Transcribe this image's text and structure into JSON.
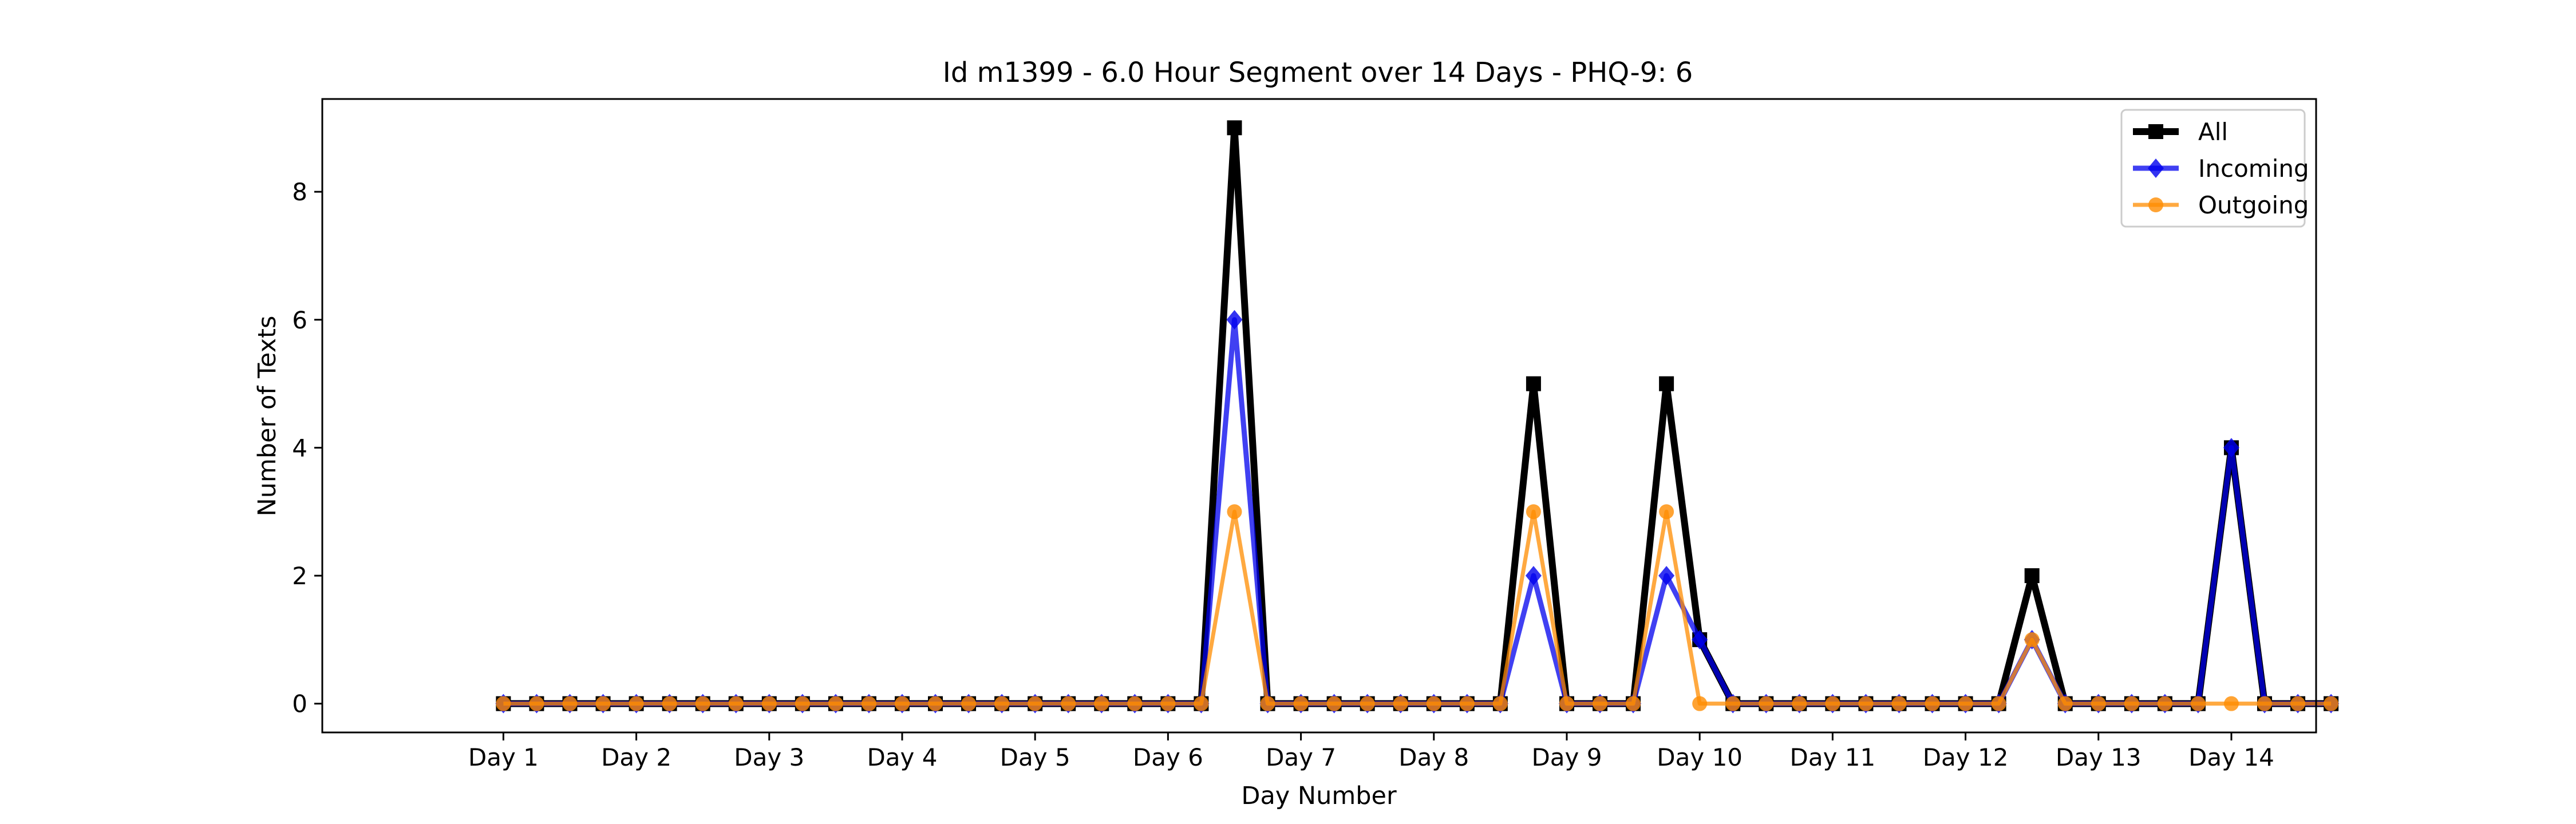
{
  "chart_data": {
    "type": "line",
    "title": "Id m1399 - 6.0 Hour Segment over 14 Days - PHQ-9: 6",
    "xlabel": "Day Number",
    "ylabel": "Number of Texts",
    "x_tick_labels": [
      "Day 1",
      "Day 2",
      "Day 3",
      "Day 4",
      "Day 5",
      "Day 6",
      "Day 7",
      "Day 8",
      "Day 9",
      "Day 10",
      "Day 11",
      "Day 12",
      "Day 13",
      "Day 14"
    ],
    "y_ticks": [
      0,
      2,
      4,
      6,
      8
    ],
    "xlim": [
      -0.3625,
      14.6375
    ],
    "ylim": [
      -0.45,
      9.45
    ],
    "x": [
      1,
      1.25,
      1.5,
      1.75,
      2,
      2.25,
      2.5,
      2.75,
      3,
      3.25,
      3.5,
      3.75,
      4,
      4.25,
      4.5,
      4.75,
      5,
      5.25,
      5.5,
      5.75,
      6,
      6.25,
      6.5,
      6.75,
      7,
      7.25,
      7.5,
      7.75,
      8,
      8.25,
      8.5,
      8.75,
      9,
      9.25,
      9.5,
      9.75,
      10,
      10.25,
      10.5,
      10.75,
      11,
      11.25,
      11.5,
      11.75,
      12,
      12.25,
      12.5,
      12.75,
      13,
      13.25,
      13.5,
      13.75,
      14,
      14.25,
      14.5,
      14.75
    ],
    "series": [
      {
        "name": "All",
        "color": "#000000",
        "marker": "square",
        "values": [
          0,
          0,
          0,
          0,
          0,
          0,
          0,
          0,
          0,
          0,
          0,
          0,
          0,
          0,
          0,
          0,
          0,
          0,
          0,
          0,
          0,
          0,
          9,
          0,
          0,
          0,
          0,
          0,
          0,
          0,
          0,
          5,
          0,
          0,
          0,
          5,
          1,
          0,
          0,
          0,
          0,
          0,
          0,
          0,
          0,
          0,
          2,
          0,
          0,
          0,
          0,
          0,
          4,
          0,
          0,
          0
        ]
      },
      {
        "name": "Incoming",
        "color": "#0000ee",
        "marker": "diamond",
        "values": [
          0,
          0,
          0,
          0,
          0,
          0,
          0,
          0,
          0,
          0,
          0,
          0,
          0,
          0,
          0,
          0,
          0,
          0,
          0,
          0,
          0,
          0,
          6,
          0,
          0,
          0,
          0,
          0,
          0,
          0,
          0,
          2,
          0,
          0,
          0,
          2,
          1,
          0,
          0,
          0,
          0,
          0,
          0,
          0,
          0,
          0,
          1,
          0,
          0,
          0,
          0,
          0,
          4,
          0,
          0,
          0
        ]
      },
      {
        "name": "Outgoing",
        "color": "#ff8c00",
        "marker": "circle",
        "values": [
          0,
          0,
          0,
          0,
          0,
          0,
          0,
          0,
          0,
          0,
          0,
          0,
          0,
          0,
          0,
          0,
          0,
          0,
          0,
          0,
          0,
          0,
          3,
          0,
          0,
          0,
          0,
          0,
          0,
          0,
          0,
          3,
          0,
          0,
          0,
          3,
          0,
          0,
          0,
          0,
          0,
          0,
          0,
          0,
          0,
          0,
          1,
          0,
          0,
          0,
          0,
          0,
          0,
          0,
          0,
          0
        ]
      }
    ],
    "legend_position": "top-right",
    "grid": false
  }
}
